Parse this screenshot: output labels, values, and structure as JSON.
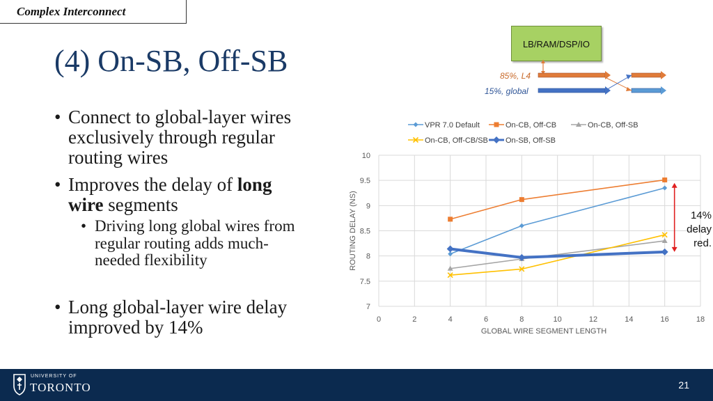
{
  "header": {
    "section_tag": "Complex Interconnect",
    "title": "(4) On-SB, Off-SB"
  },
  "bullets": {
    "b1_lines": [
      "Connect to global-layer wires",
      "exclusively through regular",
      "routing wires"
    ],
    "b2_line1_pre": "Improves the delay of ",
    "b2_line1_bold": "long",
    "b2_line2_bold": "wire",
    "b2_line2_post": " segments",
    "b2_sub_lines": [
      "Driving long global wires from",
      "regular routing adds much-",
      "needed flexibility"
    ],
    "b3_lines": [
      "Long global-layer wire delay",
      "improved by 14%"
    ]
  },
  "diagram": {
    "block_label": "LB/RAM/DSP/IO",
    "wire1_label": "85%, L4",
    "wire2_label": "15%, global",
    "wire1_color": "#e07b39",
    "wire2_color": "#4472c4"
  },
  "chart_data": {
    "type": "line",
    "xlabel": "GLOBAL WIRE SEGMENT LENGTH",
    "ylabel": "ROUTING DELAY (NS)",
    "xlim": [
      0,
      18
    ],
    "ylim": [
      7,
      10
    ],
    "xticks": [
      0,
      2,
      4,
      6,
      8,
      10,
      12,
      14,
      16,
      18
    ],
    "yticks": [
      7,
      7.5,
      8,
      8.5,
      9,
      9.5,
      10
    ],
    "legend_position": "top",
    "series": [
      {
        "name": "VPR 7.0 Default",
        "color": "#5b9bd5",
        "marker": "diamond",
        "x": [
          4,
          8,
          16
        ],
        "values": [
          8.04,
          8.6,
          9.35
        ]
      },
      {
        "name": "On-CB, Off-CB",
        "color": "#ed7d31",
        "marker": "square",
        "x": [
          4,
          8,
          16
        ],
        "values": [
          8.73,
          9.12,
          9.51
        ]
      },
      {
        "name": "On-CB, Off-SB",
        "color": "#a5a5a5",
        "marker": "triangle",
        "x": [
          4,
          8,
          16
        ],
        "values": [
          7.75,
          7.94,
          8.3
        ]
      },
      {
        "name": "On-CB, Off-CB/SB",
        "color": "#ffc000",
        "marker": "x",
        "x": [
          4,
          8,
          16
        ],
        "values": [
          7.62,
          7.74,
          8.42
        ]
      },
      {
        "name": "On-SB, Off-SB",
        "color": "#4472c4",
        "marker": "diamond-thick",
        "x": [
          4,
          8,
          16
        ],
        "values": [
          8.14,
          7.97,
          8.08
        ]
      }
    ],
    "annotation": {
      "lines": [
        "14%",
        "delay",
        "red."
      ],
      "arrow_color": "#e02020"
    }
  },
  "footer": {
    "university_small": "UNIVERSITY OF",
    "university_big": "TORONTO",
    "page_number": "21"
  }
}
